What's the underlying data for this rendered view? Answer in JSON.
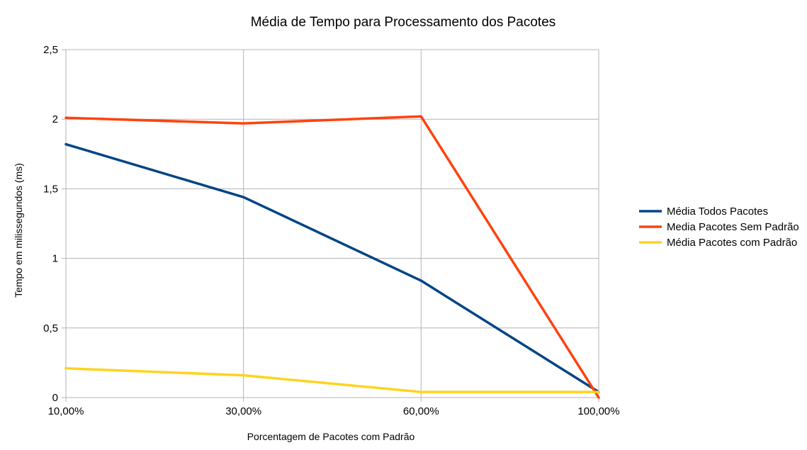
{
  "chart_data": {
    "type": "line",
    "title": "Média de Tempo para Processamento dos Pacotes",
    "xlabel": "Porcentagem de Pacotes com Padrão",
    "ylabel": "Tempo em milissegundos (ms)",
    "categories": [
      "10,00%",
      "30,00%",
      "60,00%",
      "100,00%"
    ],
    "ylim": [
      0,
      2.5
    ],
    "yticks": [
      {
        "value": 0,
        "label": "0"
      },
      {
        "value": 0.5,
        "label": "0,5"
      },
      {
        "value": 1,
        "label": "1"
      },
      {
        "value": 1.5,
        "label": "1,5"
      },
      {
        "value": 2,
        "label": "2"
      },
      {
        "value": 2.5,
        "label": "2,5"
      }
    ],
    "grid": true,
    "legend_position": "right",
    "series": [
      {
        "name": "Média Todos Pacotes",
        "color": "#004586",
        "values": [
          1.82,
          1.44,
          0.84,
          0.04
        ]
      },
      {
        "name": "Media Pacotes Sem Padrão",
        "color": "#ff420e",
        "values": [
          2.01,
          1.97,
          2.02,
          0.0
        ]
      },
      {
        "name": "Média Pacotes com Padrão",
        "color": "#ffd320",
        "values": [
          0.21,
          0.16,
          0.04,
          0.04
        ]
      }
    ]
  }
}
